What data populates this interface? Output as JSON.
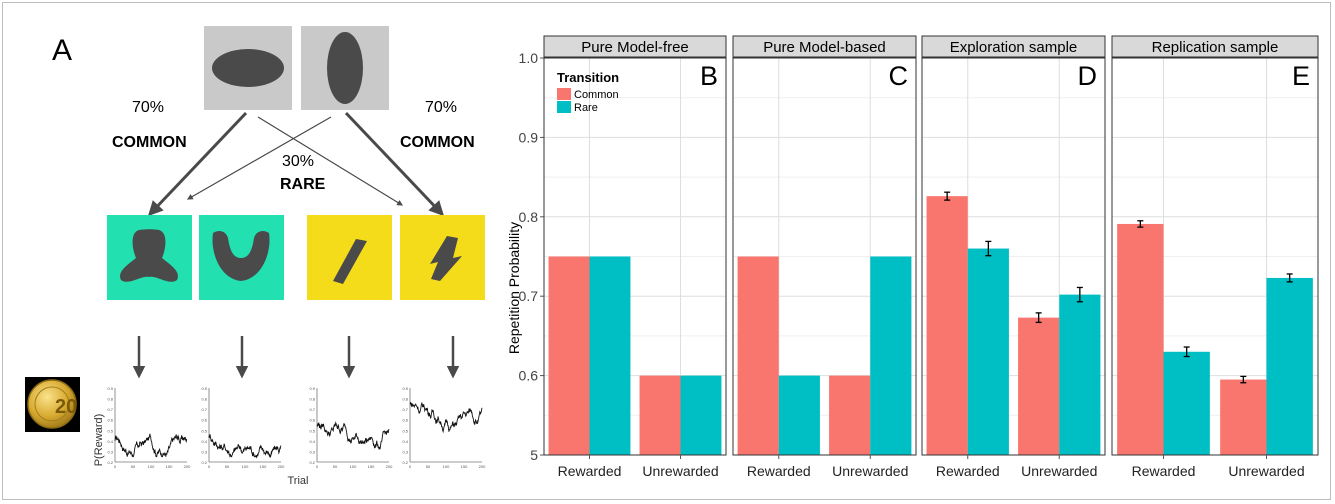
{
  "panel_a": {
    "label": "A",
    "pct_left": "70%",
    "pct_right": "70%",
    "pct_mid": "30%",
    "common_left": "COMMON",
    "common_right": "COMMON",
    "rare": "RARE",
    "coin_text": "20",
    "mini_y_label": "P(Reward)",
    "mini_x_label": "Trial",
    "mini_y_ticks": [
      "0.9",
      "0.8",
      "0.7",
      "0.6",
      "0.5",
      "0.4",
      "0.3",
      "0.2"
    ],
    "mini_x_ticks": [
      "0",
      "50",
      "100",
      "150",
      "200"
    ],
    "colors": {
      "state1_box": "#c9c9c9",
      "green_box": "#22e0b0",
      "yellow_box": "#f5dc1a",
      "shape": "#4a4a4a",
      "arrow": "#4a4a4a"
    }
  },
  "chart_data": {
    "type": "bar",
    "ylabel": "Repetition Probability",
    "yticks": [
      "1.0",
      "0.9",
      "0.8",
      "0.7",
      "0.6",
      "5"
    ],
    "ylim": [
      0.5,
      1.0
    ],
    "legend": {
      "title": "Transition",
      "placement": "top-left",
      "entries": [
        "Common",
        "Rare"
      ]
    },
    "series_colors": {
      "Common": "#f8766d",
      "Rare": "#00bfc4"
    },
    "grid": true,
    "panels": [
      {
        "strip": "Pure Model-free",
        "letter": "B",
        "categories": [
          "Rewarded",
          "Unrewarded"
        ],
        "series": [
          {
            "name": "Common",
            "values": [
              0.75,
              0.6
            ]
          },
          {
            "name": "Rare",
            "values": [
              0.75,
              0.6
            ]
          }
        ],
        "errors": null
      },
      {
        "strip": "Pure Model-based",
        "letter": "C",
        "categories": [
          "Rewarded",
          "Unrewarded"
        ],
        "series": [
          {
            "name": "Common",
            "values": [
              0.75,
              0.6
            ]
          },
          {
            "name": "Rare",
            "values": [
              0.6,
              0.75
            ]
          }
        ],
        "errors": null
      },
      {
        "strip": "Exploration sample",
        "letter": "D",
        "categories": [
          "Rewarded",
          "Unrewarded"
        ],
        "series": [
          {
            "name": "Common",
            "values": [
              0.826,
              0.673
            ]
          },
          {
            "name": "Rare",
            "values": [
              0.76,
              0.702
            ]
          }
        ],
        "errors": [
          [
            0.005,
            0.006
          ],
          [
            0.009,
            0.009
          ]
        ]
      },
      {
        "strip": "Replication sample",
        "letter": "E",
        "categories": [
          "Rewarded",
          "Unrewarded"
        ],
        "series": [
          {
            "name": "Common",
            "values": [
              0.791,
              0.595
            ]
          },
          {
            "name": "Rare",
            "values": [
              0.63,
              0.723
            ]
          }
        ],
        "errors": [
          [
            0.004,
            0.004
          ],
          [
            0.006,
            0.005
          ]
        ]
      }
    ]
  }
}
